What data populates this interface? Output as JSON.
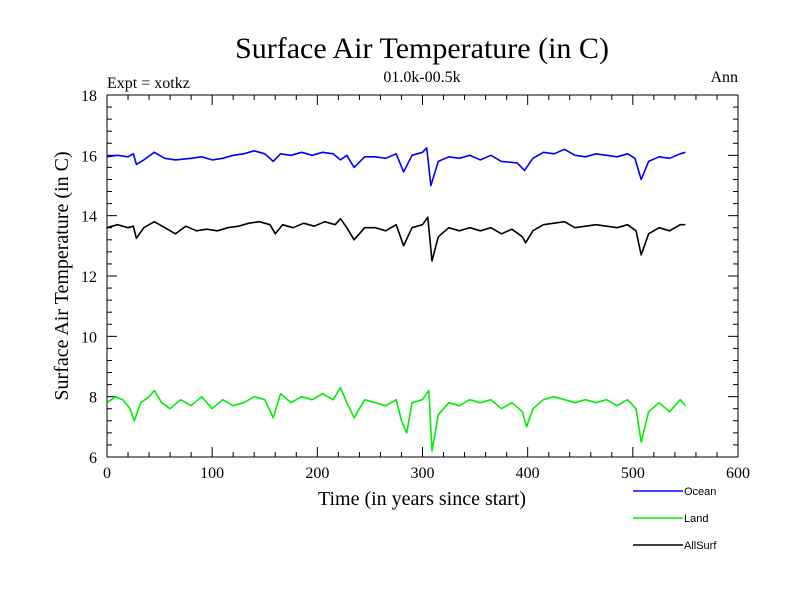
{
  "chart_data": {
    "type": "line",
    "title": "Surface Air Temperature (in C)",
    "subtitle_left": "Expt = xotkz",
    "subtitle_center": "01.0k-00.5k",
    "subtitle_right": "Ann",
    "xlabel": "Time (in years since start)",
    "ylabel": "Surface Air Temperature (in C)",
    "xlim": [
      0,
      600
    ],
    "ylim": [
      6,
      18
    ],
    "xticks": [
      0,
      100,
      200,
      300,
      400,
      500,
      600
    ],
    "yticks": [
      6,
      8,
      10,
      12,
      14,
      16,
      18
    ],
    "grid": false,
    "legend_placement": "bottom-right, below plot",
    "series": [
      {
        "name": "Ocean",
        "color": "#0000ff",
        "points": [
          [
            0,
            15.95
          ],
          [
            10,
            16.0
          ],
          [
            20,
            15.95
          ],
          [
            25,
            16.05
          ],
          [
            28,
            15.7
          ],
          [
            35,
            15.85
          ],
          [
            45,
            16.1
          ],
          [
            55,
            15.9
          ],
          [
            65,
            15.85
          ],
          [
            80,
            15.9
          ],
          [
            90,
            15.95
          ],
          [
            100,
            15.85
          ],
          [
            110,
            15.9
          ],
          [
            120,
            16.0
          ],
          [
            130,
            16.05
          ],
          [
            140,
            16.15
          ],
          [
            150,
            16.05
          ],
          [
            158,
            15.8
          ],
          [
            165,
            16.05
          ],
          [
            175,
            16.0
          ],
          [
            185,
            16.1
          ],
          [
            195,
            16.0
          ],
          [
            205,
            16.1
          ],
          [
            215,
            16.05
          ],
          [
            222,
            15.85
          ],
          [
            228,
            16.0
          ],
          [
            235,
            15.6
          ],
          [
            245,
            15.95
          ],
          [
            255,
            15.95
          ],
          [
            265,
            15.9
          ],
          [
            275,
            16.05
          ],
          [
            282,
            15.45
          ],
          [
            290,
            16.0
          ],
          [
            300,
            16.1
          ],
          [
            304,
            16.25
          ],
          [
            308,
            15.0
          ],
          [
            315,
            15.8
          ],
          [
            325,
            15.95
          ],
          [
            335,
            15.9
          ],
          [
            345,
            16.0
          ],
          [
            355,
            15.85
          ],
          [
            365,
            16.0
          ],
          [
            375,
            15.8
          ],
          [
            390,
            15.75
          ],
          [
            397,
            15.5
          ],
          [
            405,
            15.9
          ],
          [
            415,
            16.1
          ],
          [
            425,
            16.05
          ],
          [
            435,
            16.2
          ],
          [
            445,
            16.0
          ],
          [
            455,
            15.95
          ],
          [
            465,
            16.05
          ],
          [
            475,
            16.0
          ],
          [
            485,
            15.95
          ],
          [
            495,
            16.05
          ],
          [
            502,
            15.9
          ],
          [
            508,
            15.2
          ],
          [
            515,
            15.8
          ],
          [
            525,
            15.95
          ],
          [
            535,
            15.9
          ],
          [
            545,
            16.05
          ],
          [
            550,
            16.1
          ]
        ]
      },
      {
        "name": "Land",
        "color": "#00ee00",
        "points": [
          [
            0,
            7.8
          ],
          [
            8,
            8.0
          ],
          [
            15,
            7.9
          ],
          [
            22,
            7.6
          ],
          [
            26,
            7.2
          ],
          [
            32,
            7.8
          ],
          [
            40,
            8.0
          ],
          [
            45,
            8.2
          ],
          [
            52,
            7.8
          ],
          [
            60,
            7.6
          ],
          [
            70,
            7.9
          ],
          [
            80,
            7.7
          ],
          [
            90,
            8.0
          ],
          [
            100,
            7.6
          ],
          [
            110,
            7.9
          ],
          [
            120,
            7.7
          ],
          [
            130,
            7.8
          ],
          [
            140,
            8.0
          ],
          [
            150,
            7.9
          ],
          [
            158,
            7.3
          ],
          [
            165,
            8.1
          ],
          [
            175,
            7.8
          ],
          [
            185,
            8.0
          ],
          [
            195,
            7.9
          ],
          [
            205,
            8.1
          ],
          [
            215,
            7.9
          ],
          [
            222,
            8.3
          ],
          [
            228,
            7.8
          ],
          [
            235,
            7.3
          ],
          [
            245,
            7.9
          ],
          [
            255,
            7.8
          ],
          [
            265,
            7.7
          ],
          [
            275,
            7.9
          ],
          [
            280,
            7.2
          ],
          [
            285,
            6.8
          ],
          [
            290,
            7.8
          ],
          [
            300,
            7.9
          ],
          [
            306,
            8.2
          ],
          [
            309,
            6.2
          ],
          [
            315,
            7.4
          ],
          [
            325,
            7.8
          ],
          [
            335,
            7.7
          ],
          [
            345,
            7.9
          ],
          [
            355,
            7.8
          ],
          [
            365,
            7.9
          ],
          [
            375,
            7.6
          ],
          [
            385,
            7.8
          ],
          [
            395,
            7.5
          ],
          [
            399,
            7.0
          ],
          [
            405,
            7.6
          ],
          [
            415,
            7.9
          ],
          [
            425,
            8.0
          ],
          [
            435,
            7.9
          ],
          [
            445,
            7.8
          ],
          [
            455,
            7.9
          ],
          [
            465,
            7.8
          ],
          [
            475,
            7.9
          ],
          [
            485,
            7.7
          ],
          [
            495,
            7.9
          ],
          [
            503,
            7.6
          ],
          [
            508,
            6.5
          ],
          [
            515,
            7.5
          ],
          [
            525,
            7.8
          ],
          [
            535,
            7.5
          ],
          [
            545,
            7.9
          ],
          [
            550,
            7.7
          ]
        ]
      },
      {
        "name": "AllSurf",
        "color": "#000000",
        "points": [
          [
            0,
            13.6
          ],
          [
            10,
            13.7
          ],
          [
            20,
            13.6
          ],
          [
            25,
            13.65
          ],
          [
            28,
            13.25
          ],
          [
            35,
            13.6
          ],
          [
            45,
            13.8
          ],
          [
            55,
            13.6
          ],
          [
            65,
            13.4
          ],
          [
            75,
            13.65
          ],
          [
            85,
            13.5
          ],
          [
            95,
            13.55
          ],
          [
            105,
            13.5
          ],
          [
            115,
            13.6
          ],
          [
            125,
            13.65
          ],
          [
            135,
            13.75
          ],
          [
            145,
            13.8
          ],
          [
            155,
            13.7
          ],
          [
            160,
            13.4
          ],
          [
            167,
            13.7
          ],
          [
            177,
            13.6
          ],
          [
            187,
            13.75
          ],
          [
            197,
            13.65
          ],
          [
            207,
            13.8
          ],
          [
            217,
            13.7
          ],
          [
            222,
            13.9
          ],
          [
            228,
            13.6
          ],
          [
            235,
            13.2
          ],
          [
            245,
            13.6
          ],
          [
            255,
            13.6
          ],
          [
            265,
            13.5
          ],
          [
            275,
            13.7
          ],
          [
            282,
            13.0
          ],
          [
            290,
            13.6
          ],
          [
            300,
            13.7
          ],
          [
            305,
            13.95
          ],
          [
            309,
            12.5
          ],
          [
            315,
            13.3
          ],
          [
            325,
            13.6
          ],
          [
            335,
            13.5
          ],
          [
            345,
            13.6
          ],
          [
            355,
            13.5
          ],
          [
            365,
            13.6
          ],
          [
            375,
            13.4
          ],
          [
            385,
            13.55
          ],
          [
            395,
            13.3
          ],
          [
            398,
            13.1
          ],
          [
            405,
            13.5
          ],
          [
            415,
            13.7
          ],
          [
            425,
            13.75
          ],
          [
            435,
            13.8
          ],
          [
            445,
            13.6
          ],
          [
            455,
            13.65
          ],
          [
            465,
            13.7
          ],
          [
            475,
            13.65
          ],
          [
            485,
            13.6
          ],
          [
            495,
            13.7
          ],
          [
            503,
            13.5
          ],
          [
            508,
            12.7
          ],
          [
            515,
            13.4
          ],
          [
            525,
            13.6
          ],
          [
            535,
            13.5
          ],
          [
            545,
            13.7
          ],
          [
            550,
            13.7
          ]
        ]
      }
    ]
  }
}
